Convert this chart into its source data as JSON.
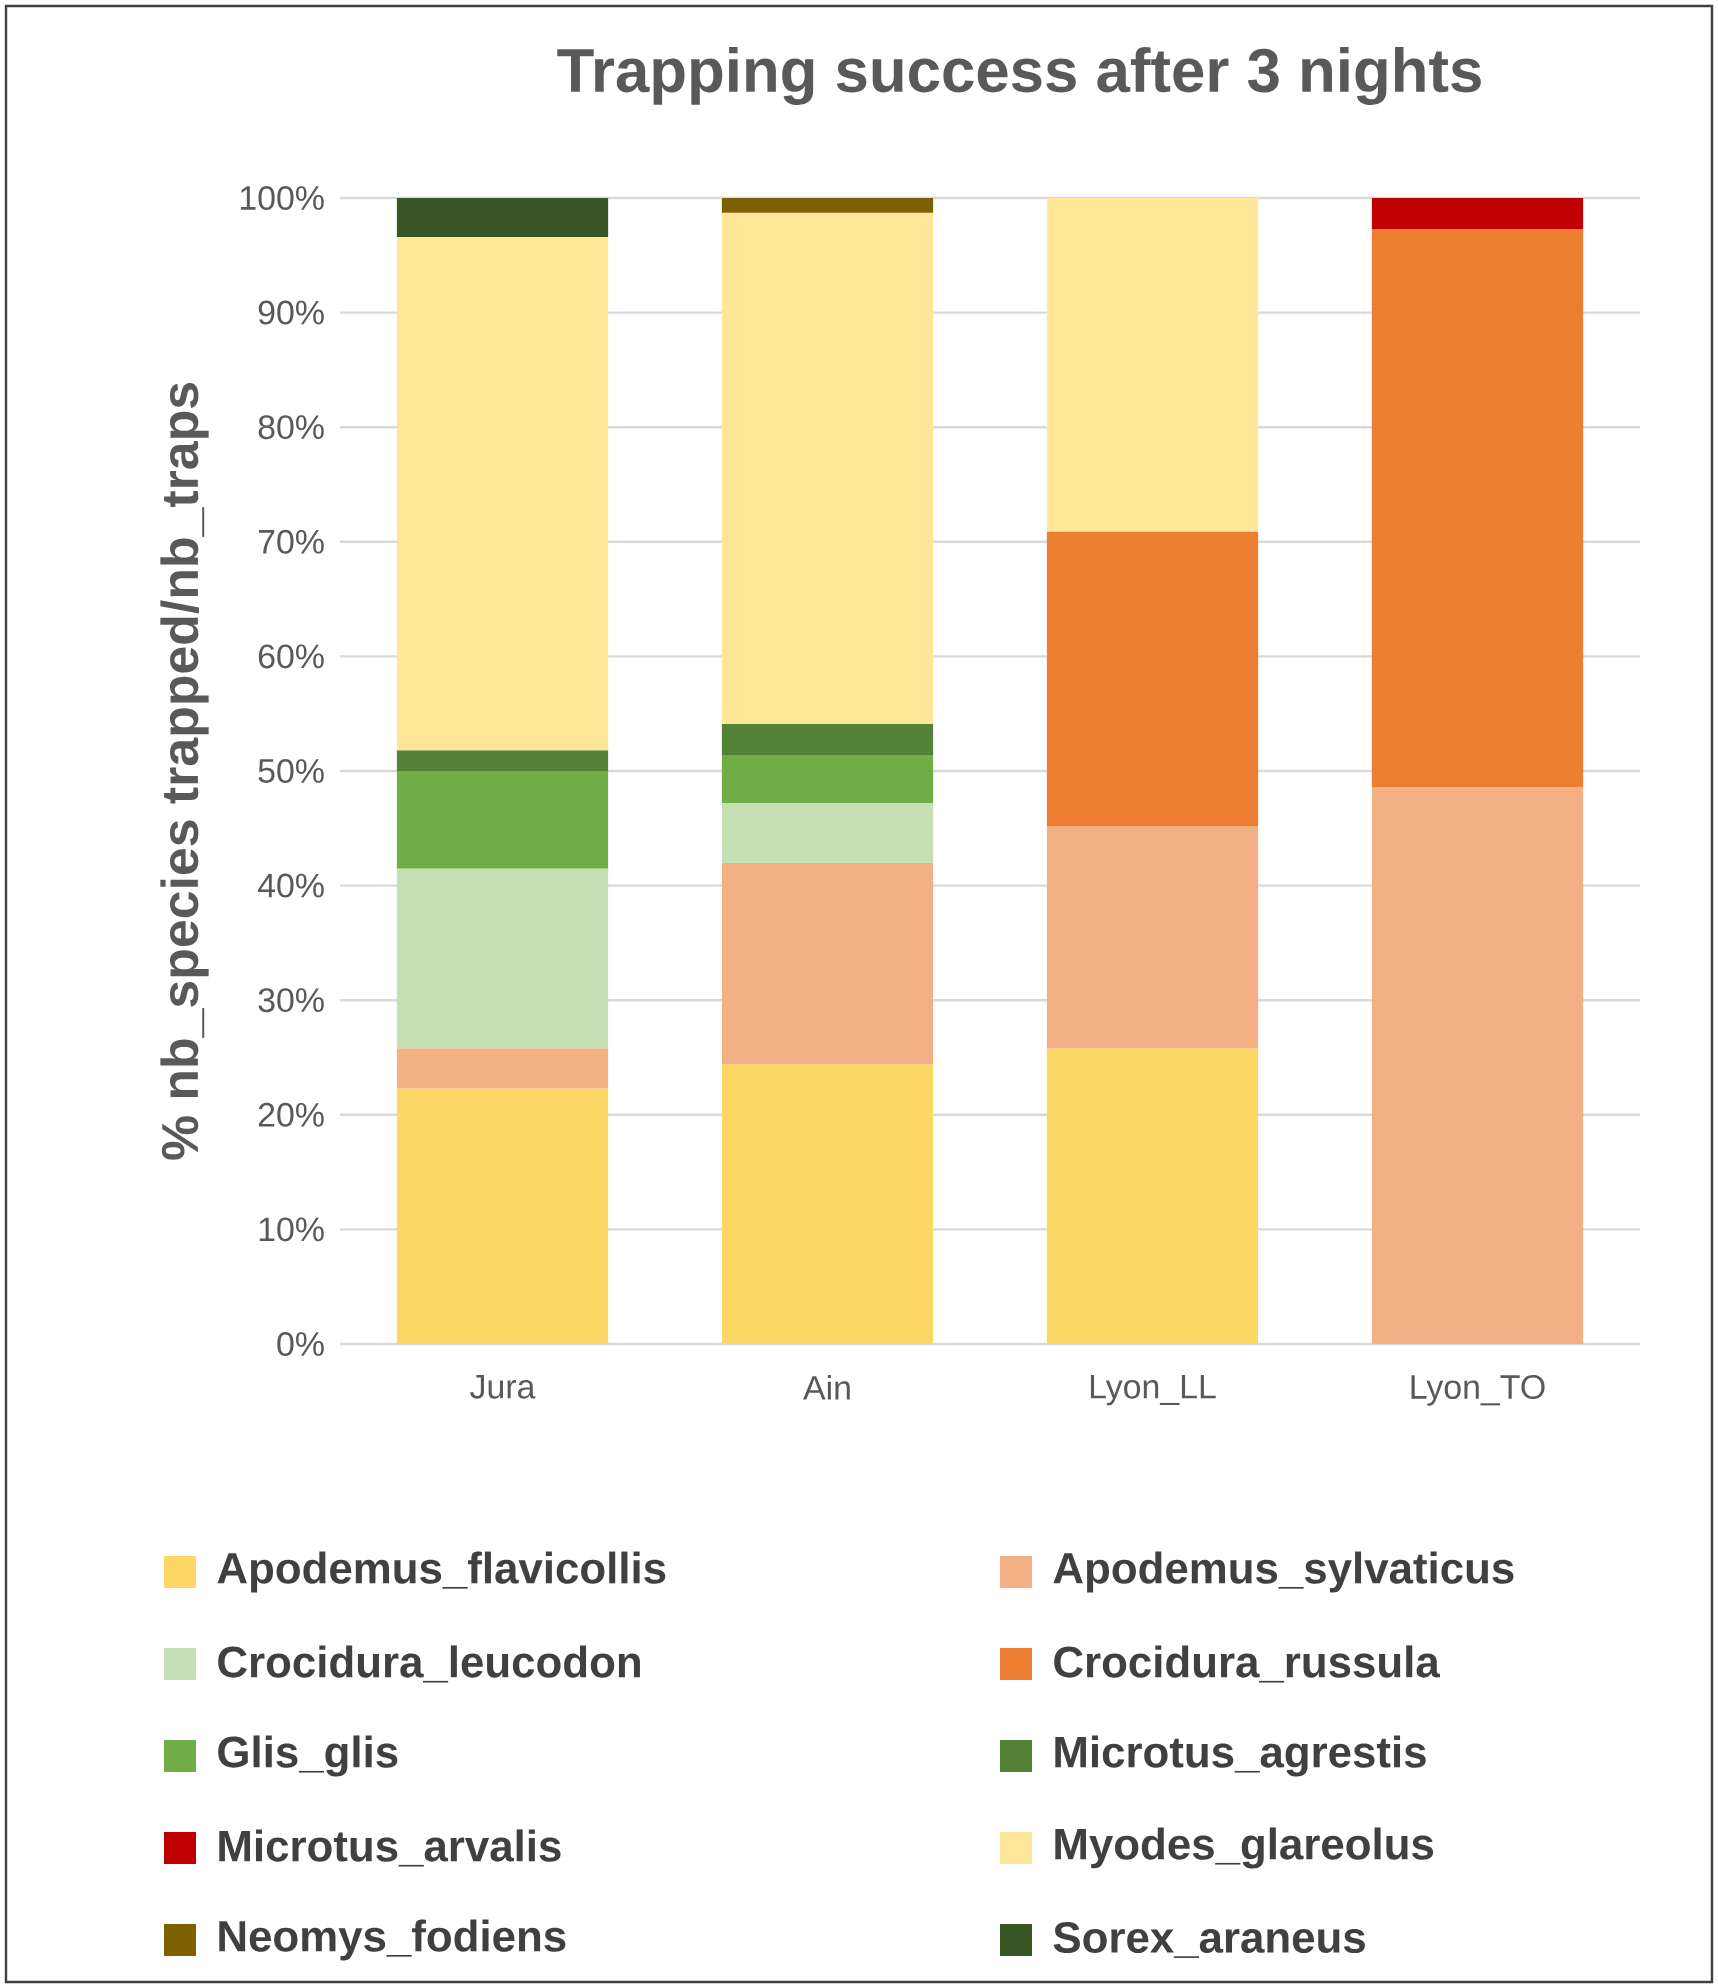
{
  "chart_data": {
    "type": "bar",
    "stacked": true,
    "title": "Trapping success after 3 nights",
    "ylabel": "% nb_species trapped/nb_traps",
    "categories": [
      "Jura",
      "Ain",
      "Lyon_LL",
      "Lyon_TO"
    ],
    "ylim": [
      0,
      100
    ],
    "yticks": [
      {
        "value": 0,
        "label": "0%"
      },
      {
        "value": 10,
        "label": "10%"
      },
      {
        "value": 20,
        "label": "20%"
      },
      {
        "value": 30,
        "label": "30%"
      },
      {
        "value": 40,
        "label": "40%"
      },
      {
        "value": 50,
        "label": "50%"
      },
      {
        "value": 60,
        "label": "60%"
      },
      {
        "value": 70,
        "label": "70%"
      },
      {
        "value": 80,
        "label": "80%"
      },
      {
        "value": 90,
        "label": "90%"
      },
      {
        "value": 100,
        "label": "100%"
      }
    ],
    "grid": "y",
    "legend": "bottom",
    "series": [
      {
        "name": "Apodemus_flavicollis",
        "color": "#fdd766",
        "values": [
          22.3,
          24.4,
          25.8,
          null
        ]
      },
      {
        "name": "Apodemus_sylvaticus",
        "color": "#f3b084",
        "values": [
          3.5,
          17.6,
          19.4,
          48.6
        ]
      },
      {
        "name": "Crocidura_leucodon",
        "color": "#c5e0b4",
        "values": [
          15.7,
          5.2,
          null,
          null
        ]
      },
      {
        "name": "Crocidura_russula",
        "color": "#ed7d31",
        "values": [
          null,
          null,
          25.7,
          48.7
        ]
      },
      {
        "name": "Glis_glis",
        "color": "#70ad47",
        "values": [
          8.5,
          4.2,
          null,
          null
        ]
      },
      {
        "name": "Microtus_agrestis",
        "color": "#538135",
        "values": [
          1.8,
          2.7,
          null,
          null
        ]
      },
      {
        "name": "Microtus_arvalis",
        "color": "#c00000",
        "values": [
          null,
          null,
          null,
          2.7
        ]
      },
      {
        "name": "Myodes_glareolus",
        "color": "#ffe699",
        "values": [
          44.8,
          44.6,
          29.1,
          null
        ]
      },
      {
        "name": "Neomys_fodiens",
        "color": "#7f6000",
        "values": [
          null,
          1.3,
          null,
          null
        ]
      },
      {
        "name": "Sorex_araneus",
        "color": "#375623",
        "values": [
          3.4,
          null,
          null,
          null
        ]
      }
    ]
  }
}
